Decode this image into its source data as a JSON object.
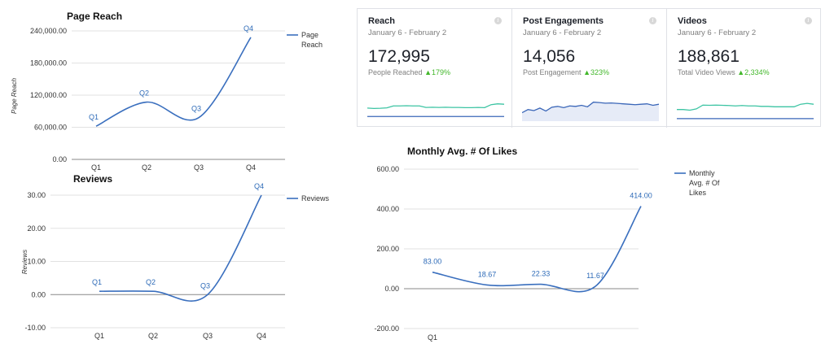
{
  "colors": {
    "series": "#3a6fbe",
    "spark_green": "#3cc4a3",
    "spark_blue": "#3a66b8",
    "change_green": "#42b72a"
  },
  "chart_data": [
    {
      "id": "page-reach",
      "type": "line",
      "title": "Page Reach",
      "ylabel": "Page Reach",
      "xlabel": "",
      "categories": [
        "Q1",
        "Q2",
        "Q3",
        "Q4"
      ],
      "ylim": [
        0,
        240000
      ],
      "yticks": [
        0,
        60000,
        120000,
        180000,
        240000
      ],
      "ytick_labels": [
        "0.00",
        "60,000.00",
        "120,000.00",
        "180,000.00",
        "240,000.00"
      ],
      "series": [
        {
          "name": "Page Reach",
          "values": [
            62000,
            107000,
            78000,
            228000
          ],
          "point_labels": [
            "Q1",
            "Q2",
            "Q3",
            "Q4"
          ]
        }
      ],
      "legend": "top-right",
      "grid": true
    },
    {
      "id": "reviews",
      "type": "line",
      "title": "Reviews",
      "ylabel": "Reviews",
      "xlabel": "",
      "categories": [
        "Q1",
        "Q2",
        "Q3",
        "Q4"
      ],
      "ylim": [
        -10,
        30
      ],
      "yticks": [
        -10,
        0,
        10,
        20,
        30
      ],
      "ytick_labels": [
        "-10.00",
        "0.00",
        "10.00",
        "20.00",
        "30.00"
      ],
      "series": [
        {
          "name": "Reviews",
          "values": [
            1,
            1,
            0,
            30
          ],
          "point_labels": [
            "Q1",
            "Q2",
            "Q3",
            "Q4"
          ]
        }
      ],
      "legend": "top-right",
      "grid": true
    },
    {
      "id": "monthly-likes",
      "type": "line",
      "title": "Monthly Avg. # Of Likes",
      "ylabel": "",
      "xlabel": "",
      "categories": [
        "Q1",
        "",
        "",
        "",
        ""
      ],
      "x_positions": [
        0,
        1,
        2,
        3,
        4
      ],
      "ylim": [
        -200,
        600
      ],
      "yticks": [
        -200,
        0,
        200,
        400,
        600
      ],
      "ytick_labels": [
        "-200.00",
        "0.00",
        "200.00",
        "400.00",
        "600.00"
      ],
      "series": [
        {
          "name": "Monthly Avg. # Of Likes",
          "values": [
            83.0,
            18.67,
            22.33,
            11.67,
            414.0
          ],
          "point_labels": [
            "83.00",
            "18.67",
            "22.33",
            "11.67",
            "414.00"
          ]
        }
      ],
      "legend": "top-right",
      "grid": true
    }
  ],
  "cards": [
    {
      "title": "Reach",
      "date": "January 6 - February 2",
      "value": "172,995",
      "sub_label": "People Reached",
      "change": "179%",
      "info": "i",
      "spark_green": [
        62,
        60,
        61,
        63,
        72,
        72,
        73,
        72,
        72,
        65,
        66,
        65,
        66,
        65,
        65,
        64,
        64,
        65,
        64,
        78,
        82,
        80
      ],
      "spark_blue": [
        52,
        52,
        52,
        52,
        52,
        52,
        52,
        52,
        52,
        52,
        52,
        52,
        52,
        52,
        52,
        52,
        52,
        52,
        52,
        52,
        52,
        52
      ]
    },
    {
      "title": "Post Engagements",
      "date": "January 6 - February 2",
      "value": "14,056",
      "sub_label": "Post Engagement",
      "change": "323%",
      "info": "i",
      "spark_fill": [
        40,
        55,
        50,
        62,
        48,
        66,
        70,
        64,
        72,
        70,
        75,
        68,
        90,
        88,
        85,
        86,
        84,
        82,
        80,
        78,
        80,
        82,
        75,
        80
      ],
      "spark_blue": []
    },
    {
      "title": "Videos",
      "date": "January 6 - February 2",
      "value": "188,861",
      "sub_label": "Total Video Views",
      "change": "2,334%",
      "info": "i",
      "spark_green": [
        55,
        55,
        52,
        58,
        76,
        75,
        76,
        75,
        74,
        72,
        74,
        72,
        72,
        70,
        70,
        68,
        68,
        68,
        68,
        80,
        84,
        80
      ],
      "spark_blue": [
        42,
        42,
        42,
        42,
        42,
        42,
        42,
        42,
        42,
        42,
        42,
        42,
        42,
        42,
        42,
        42,
        42,
        42,
        42,
        42,
        42,
        42
      ]
    }
  ]
}
